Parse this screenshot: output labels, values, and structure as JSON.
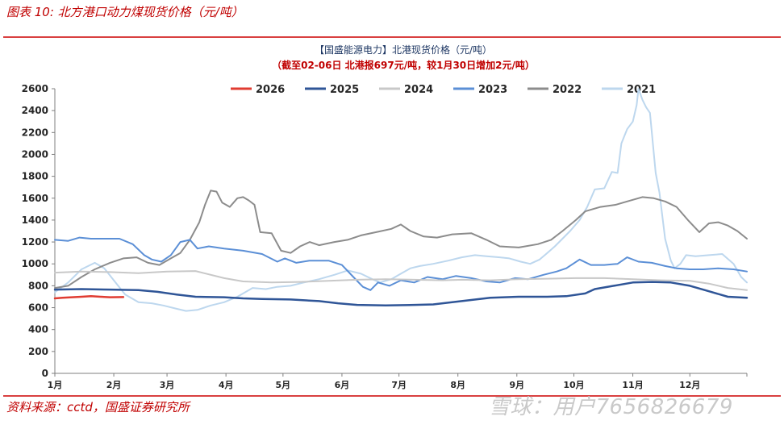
{
  "figure": {
    "title": "图表 10:  北方港口动力煤现货价格（元/吨）",
    "source": "资料来源：cctd，国盛证券研究所",
    "watermark": "雪球：用户7656826679"
  },
  "chart_data": {
    "type": "line",
    "title": "【国盛能源电力】北港现货价格（元/吨）",
    "subtitle": "（截至02-06日  北港报697元/吨，较1月30日增加2元/吨）",
    "xlabel": "",
    "ylabel": "",
    "x_tick_labels": [
      "1月",
      "2月",
      "3月",
      "4月",
      "5月",
      "6月",
      "7月",
      "8月",
      "9月",
      "10月",
      "11月",
      "12月"
    ],
    "ylim": [
      0,
      2600
    ],
    "yticks": [
      0,
      200,
      400,
      600,
      800,
      1000,
      1200,
      1400,
      1600,
      1800,
      2000,
      2200,
      2400,
      2600
    ],
    "grid": false,
    "legend_position": "top",
    "x_unit": "day of year",
    "series": [
      {
        "name": "2026",
        "color": "#e03c31",
        "width": 2.5,
        "points": [
          [
            1,
            685
          ],
          [
            5,
            690
          ],
          [
            10,
            695
          ],
          [
            15,
            700
          ],
          [
            20,
            705
          ],
          [
            25,
            700
          ],
          [
            30,
            695
          ],
          [
            37,
            697
          ]
        ]
      },
      {
        "name": "2025",
        "color": "#2f5597",
        "width": 2.5,
        "points": [
          [
            1,
            765
          ],
          [
            15,
            770
          ],
          [
            30,
            765
          ],
          [
            45,
            760
          ],
          [
            55,
            745
          ],
          [
            65,
            720
          ],
          [
            75,
            700
          ],
          [
            90,
            695
          ],
          [
            100,
            685
          ],
          [
            110,
            680
          ],
          [
            125,
            675
          ],
          [
            140,
            660
          ],
          [
            150,
            640
          ],
          [
            160,
            625
          ],
          [
            175,
            620
          ],
          [
            190,
            625
          ],
          [
            200,
            630
          ],
          [
            210,
            650
          ],
          [
            220,
            670
          ],
          [
            230,
            690
          ],
          [
            245,
            700
          ],
          [
            260,
            700
          ],
          [
            270,
            705
          ],
          [
            280,
            730
          ],
          [
            285,
            770
          ],
          [
            295,
            800
          ],
          [
            305,
            830
          ],
          [
            315,
            835
          ],
          [
            325,
            830
          ],
          [
            335,
            800
          ],
          [
            345,
            750
          ],
          [
            355,
            700
          ],
          [
            365,
            690
          ]
        ]
      },
      {
        "name": "2024",
        "color": "#c8c8c8",
        "width": 2,
        "points": [
          [
            1,
            920
          ],
          [
            15,
            930
          ],
          [
            30,
            925
          ],
          [
            45,
            915
          ],
          [
            60,
            930
          ],
          [
            75,
            935
          ],
          [
            90,
            870
          ],
          [
            100,
            840
          ],
          [
            115,
            830
          ],
          [
            130,
            835
          ],
          [
            145,
            845
          ],
          [
            160,
            855
          ],
          [
            175,
            860
          ],
          [
            190,
            855
          ],
          [
            205,
            850
          ],
          [
            215,
            855
          ],
          [
            230,
            850
          ],
          [
            245,
            860
          ],
          [
            260,
            865
          ],
          [
            275,
            870
          ],
          [
            290,
            870
          ],
          [
            305,
            860
          ],
          [
            320,
            850
          ],
          [
            335,
            845
          ],
          [
            345,
            820
          ],
          [
            355,
            780
          ],
          [
            365,
            760
          ]
        ]
      },
      {
        "name": "2023",
        "color": "#5b8fd6",
        "width": 2,
        "points": [
          [
            1,
            1220
          ],
          [
            8,
            1210
          ],
          [
            14,
            1240
          ],
          [
            20,
            1230
          ],
          [
            35,
            1230
          ],
          [
            42,
            1180
          ],
          [
            48,
            1080
          ],
          [
            52,
            1040
          ],
          [
            57,
            1020
          ],
          [
            62,
            1080
          ],
          [
            67,
            1200
          ],
          [
            72,
            1220
          ],
          [
            76,
            1140
          ],
          [
            82,
            1160
          ],
          [
            90,
            1140
          ],
          [
            100,
            1120
          ],
          [
            110,
            1090
          ],
          [
            118,
            1020
          ],
          [
            122,
            1050
          ],
          [
            128,
            1010
          ],
          [
            135,
            1030
          ],
          [
            145,
            1030
          ],
          [
            152,
            990
          ],
          [
            158,
            880
          ],
          [
            163,
            790
          ],
          [
            167,
            760
          ],
          [
            171,
            830
          ],
          [
            177,
            800
          ],
          [
            183,
            850
          ],
          [
            190,
            830
          ],
          [
            197,
            880
          ],
          [
            205,
            860
          ],
          [
            212,
            890
          ],
          [
            220,
            870
          ],
          [
            228,
            840
          ],
          [
            235,
            830
          ],
          [
            243,
            870
          ],
          [
            250,
            860
          ],
          [
            258,
            900
          ],
          [
            265,
            930
          ],
          [
            270,
            960
          ],
          [
            277,
            1040
          ],
          [
            283,
            990
          ],
          [
            290,
            990
          ],
          [
            297,
            1000
          ],
          [
            302,
            1060
          ],
          [
            308,
            1020
          ],
          [
            315,
            1010
          ],
          [
            322,
            980
          ],
          [
            328,
            960
          ],
          [
            335,
            950
          ],
          [
            342,
            950
          ],
          [
            350,
            960
          ],
          [
            358,
            950
          ],
          [
            365,
            930
          ]
        ]
      },
      {
        "name": "2022",
        "color": "#8c8c8c",
        "width": 2,
        "points": [
          [
            1,
            780
          ],
          [
            8,
            800
          ],
          [
            15,
            880
          ],
          [
            22,
            950
          ],
          [
            30,
            1010
          ],
          [
            37,
            1050
          ],
          [
            44,
            1060
          ],
          [
            50,
            1010
          ],
          [
            56,
            990
          ],
          [
            62,
            1050
          ],
          [
            67,
            1100
          ],
          [
            72,
            1220
          ],
          [
            77,
            1380
          ],
          [
            80,
            1540
          ],
          [
            83,
            1670
          ],
          [
            86,
            1660
          ],
          [
            89,
            1560
          ],
          [
            93,
            1520
          ],
          [
            97,
            1600
          ],
          [
            100,
            1610
          ],
          [
            103,
            1580
          ],
          [
            106,
            1540
          ],
          [
            109,
            1290
          ],
          [
            115,
            1280
          ],
          [
            120,
            1120
          ],
          [
            125,
            1100
          ],
          [
            130,
            1160
          ],
          [
            135,
            1200
          ],
          [
            140,
            1170
          ],
          [
            148,
            1200
          ],
          [
            155,
            1220
          ],
          [
            162,
            1260
          ],
          [
            170,
            1290
          ],
          [
            178,
            1320
          ],
          [
            183,
            1360
          ],
          [
            188,
            1300
          ],
          [
            195,
            1250
          ],
          [
            202,
            1240
          ],
          [
            210,
            1270
          ],
          [
            220,
            1280
          ],
          [
            228,
            1220
          ],
          [
            235,
            1160
          ],
          [
            245,
            1150
          ],
          [
            255,
            1180
          ],
          [
            262,
            1220
          ],
          [
            268,
            1300
          ],
          [
            275,
            1400
          ],
          [
            280,
            1480
          ],
          [
            288,
            1520
          ],
          [
            296,
            1540
          ],
          [
            302,
            1570
          ],
          [
            310,
            1610
          ],
          [
            316,
            1600
          ],
          [
            322,
            1570
          ],
          [
            328,
            1520
          ],
          [
            334,
            1400
          ],
          [
            340,
            1290
          ],
          [
            345,
            1370
          ],
          [
            350,
            1380
          ],
          [
            355,
            1350
          ],
          [
            360,
            1300
          ],
          [
            365,
            1230
          ]
        ]
      },
      {
        "name": "2021",
        "color": "#bdd7ee",
        "width": 2,
        "points": [
          [
            1,
            740
          ],
          [
            8,
            830
          ],
          [
            15,
            950
          ],
          [
            22,
            1010
          ],
          [
            27,
            960
          ],
          [
            32,
            850
          ],
          [
            38,
            720
          ],
          [
            45,
            650
          ],
          [
            52,
            640
          ],
          [
            58,
            620
          ],
          [
            65,
            590
          ],
          [
            70,
            570
          ],
          [
            76,
            580
          ],
          [
            83,
            620
          ],
          [
            90,
            650
          ],
          [
            97,
            700
          ],
          [
            105,
            780
          ],
          [
            112,
            770
          ],
          [
            118,
            790
          ],
          [
            125,
            800
          ],
          [
            132,
            830
          ],
          [
            140,
            860
          ],
          [
            148,
            900
          ],
          [
            155,
            940
          ],
          [
            162,
            910
          ],
          [
            168,
            860
          ],
          [
            172,
            830
          ],
          [
            178,
            860
          ],
          [
            182,
            900
          ],
          [
            188,
            960
          ],
          [
            193,
            980
          ],
          [
            200,
            1000
          ],
          [
            208,
            1030
          ],
          [
            215,
            1060
          ],
          [
            222,
            1080
          ],
          [
            228,
            1070
          ],
          [
            235,
            1060
          ],
          [
            240,
            1050
          ],
          [
            246,
            1020
          ],
          [
            251,
            1000
          ],
          [
            256,
            1040
          ],
          [
            260,
            1100
          ],
          [
            264,
            1160
          ],
          [
            268,
            1230
          ],
          [
            272,
            1300
          ],
          [
            277,
            1400
          ],
          [
            281,
            1520
          ],
          [
            285,
            1680
          ],
          [
            290,
            1690
          ],
          [
            294,
            1840
          ],
          [
            297,
            1830
          ],
          [
            299,
            2100
          ],
          [
            302,
            2230
          ],
          [
            305,
            2300
          ],
          [
            307,
            2450
          ],
          [
            308,
            2600
          ],
          [
            310,
            2500
          ],
          [
            312,
            2430
          ],
          [
            314,
            2380
          ],
          [
            317,
            1830
          ],
          [
            319,
            1650
          ],
          [
            322,
            1230
          ],
          [
            325,
            1030
          ],
          [
            327,
            960
          ],
          [
            330,
            1000
          ],
          [
            333,
            1080
          ],
          [
            338,
            1070
          ],
          [
            345,
            1080
          ],
          [
            352,
            1090
          ],
          [
            358,
            1000
          ],
          [
            362,
            880
          ],
          [
            365,
            830
          ]
        ]
      }
    ]
  }
}
